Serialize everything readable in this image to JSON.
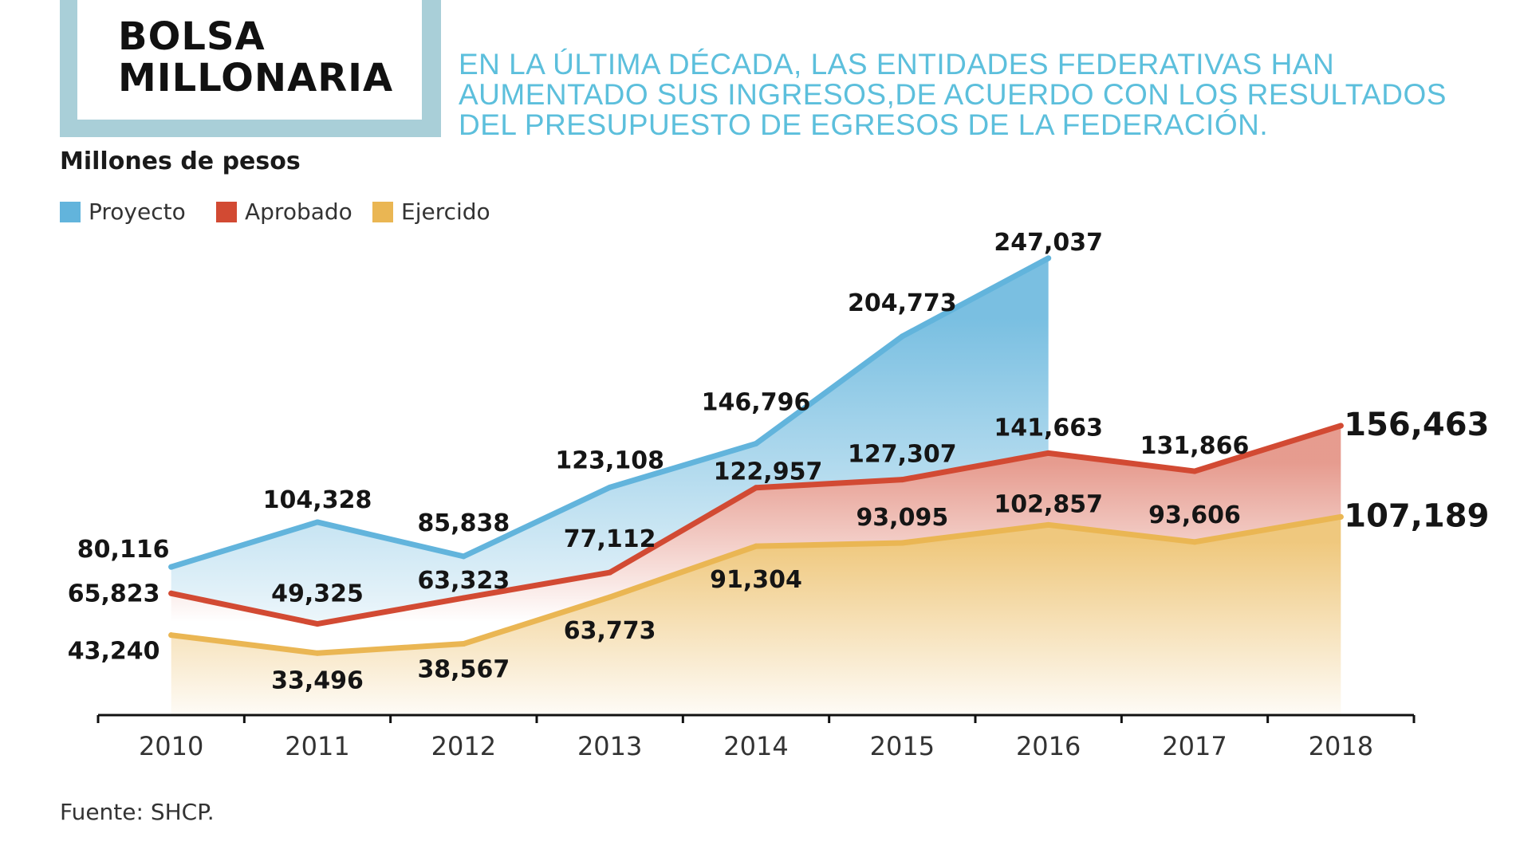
{
  "title": {
    "line1": "BOLSA",
    "line2": "MILLONARIA"
  },
  "subtitle": [
    "EN LA ÚLTIMA DÉCADA, LAS ENTIDADES FEDERATIVAS HAN",
    "AUMENTADO SUS INGRESOS,DE ACUERDO CON LOS RESULTADOS",
    "DEL PRESUPUESTO DE EGRESOS DE LA FEDERACIÓN."
  ],
  "units_label": "Millones de pesos",
  "source": "Fuente: SHCP.",
  "colors": {
    "title_frame": "#a9cfd8",
    "subtitle": "#5cbfdc",
    "proyecto": "#62b4dc",
    "aprobado": "#d24a33",
    "ejercido": "#eab653"
  },
  "legend": [
    {
      "label": "Proyecto",
      "color": "#62b4dc"
    },
    {
      "label": "Aprobado",
      "color": "#d24a33"
    },
    {
      "label": "Ejercido",
      "color": "#eab653"
    }
  ],
  "chart_data": {
    "type": "area",
    "categories": [
      "2010",
      "2011",
      "2012",
      "2013",
      "2014",
      "2015",
      "2016",
      "2017",
      "2018"
    ],
    "series": [
      {
        "name": "Proyecto",
        "values": [
          80116,
          104328,
          85838,
          123108,
          146796,
          204773,
          247037,
          null,
          null
        ],
        "labels": [
          "80,116",
          "104,328",
          "85,838",
          "123,108",
          "146,796",
          "204,773",
          "247,037",
          null,
          null
        ]
      },
      {
        "name": "Aprobado",
        "values": [
          65823,
          49325,
          63323,
          77112,
          122957,
          127307,
          141663,
          131866,
          156463
        ],
        "labels": [
          "65,823",
          "49,325",
          "63,323",
          "77,112",
          "122,957",
          "127,307",
          "141,663",
          "131,866",
          "156,463"
        ]
      },
      {
        "name": "Ejercido",
        "values": [
          43240,
          33496,
          38567,
          63773,
          91304,
          93095,
          102857,
          93606,
          107189
        ],
        "labels": [
          "43,240",
          "33,496",
          "38,567",
          "63,773",
          "91,304",
          "93,095",
          "102,857",
          "93,606",
          "107,189"
        ]
      }
    ],
    "ylim": [
      0,
      260000
    ],
    "grid": false,
    "legend_position": "top-left"
  }
}
